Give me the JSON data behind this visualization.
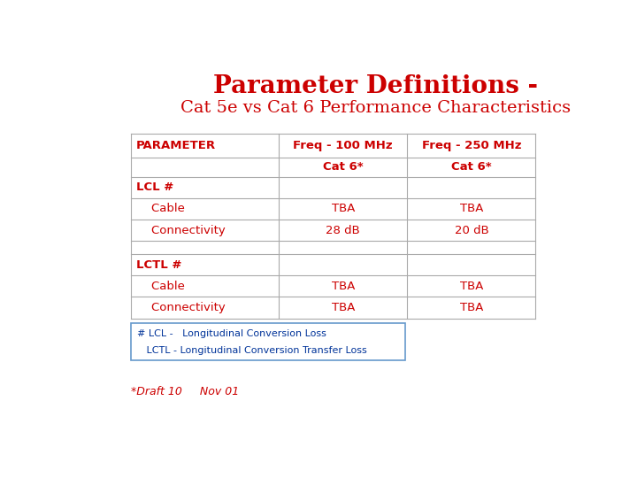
{
  "title_line1": "Parameter Definitions -",
  "title_line2": "Cat 5e vs Cat 6 Performance Characteristics",
  "title_color": "#cc0000",
  "title_line1_fontsize": 20,
  "title_line2_fontsize": 14,
  "col_headers_row1": [
    "PARAMETER",
    "Freq - 100 MHz",
    "Freq - 250 MHz"
  ],
  "col_headers_row2": [
    "",
    "Cat 6*",
    "Cat 6*"
  ],
  "table_rows": [
    [
      "LCL #",
      "",
      ""
    ],
    [
      "    Cable",
      "TBA",
      "TBA"
    ],
    [
      "    Connectivity",
      "28 dB",
      "20 dB"
    ],
    [
      "",
      "",
      ""
    ],
    [
      "LCTL #",
      "",
      ""
    ],
    [
      "    Cable",
      "TBA",
      "TBA"
    ],
    [
      "    Connectivity",
      "TBA",
      "TBA"
    ]
  ],
  "bold_rows": [
    0,
    4
  ],
  "text_color": "#cc0000",
  "table_border_color": "#aaaaaa",
  "note_text_line1": "# LCL -   Longitudinal Conversion Loss",
  "note_text_line2": "   LCTL - Longitudinal Conversion Transfer Loss",
  "note_border_color": "#6699cc",
  "note_text_color": "#003399",
  "footer_text": "*Draft 10     Nov 01",
  "footer_color": "#cc0000",
  "bg_color": "#ffffff",
  "fig_width": 7.2,
  "fig_height": 5.4,
  "dpi": 100
}
